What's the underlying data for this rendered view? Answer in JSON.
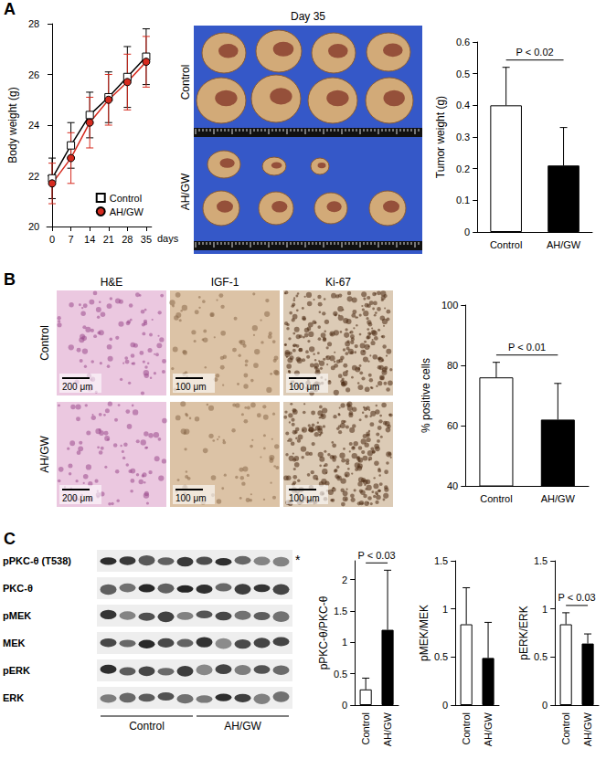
{
  "panel_labels": [
    "A",
    "B",
    "C"
  ],
  "tumor_photo": {
    "title": "Day 35",
    "rows": [
      "Control",
      "AH/GW"
    ]
  },
  "histology": {
    "columns": [
      "H&E",
      "IGF-1",
      "Ki-67"
    ],
    "rows": [
      "Control",
      "AH/GW"
    ],
    "scale_bars": [
      [
        "200 μm",
        "100 μm",
        "100 μm"
      ],
      [
        "200 μm",
        "100 μm",
        "100 μm"
      ]
    ]
  },
  "western_blot": {
    "rows": [
      "pPKC-θ (T538)",
      "PKC-θ",
      "pMEK",
      "MEK",
      "pERK",
      "ERK"
    ],
    "asterisk": "*",
    "groups": [
      "Control",
      "AH/GW"
    ]
  },
  "chart_data": [
    {
      "type": "line",
      "y_label": "Body weight (g)",
      "x_label": "days",
      "x": [
        0,
        7,
        14,
        21,
        28,
        35
      ],
      "xlim": [
        -2,
        37
      ],
      "xticks": [
        0,
        7,
        14,
        21,
        28,
        35
      ],
      "ylim": [
        20,
        28
      ],
      "yticks": [
        20,
        22,
        24,
        26,
        28
      ],
      "grid": false,
      "legend": "lower right",
      "series": [
        {
          "name": "Control",
          "color": "#000000",
          "marker": "square",
          "values": [
            21.9,
            23.2,
            24.4,
            25.1,
            25.9,
            26.7
          ],
          "errors": [
            0.8,
            0.9,
            0.9,
            1.0,
            1.2,
            1.1
          ]
        },
        {
          "name": "AH/GW",
          "color": "#d62b1f",
          "marker": "circle",
          "values": [
            21.7,
            22.7,
            24.1,
            25.0,
            25.7,
            26.5
          ],
          "errors": [
            0.8,
            1.0,
            1.0,
            1.0,
            1.1,
            1.0
          ]
        }
      ]
    },
    {
      "type": "bar",
      "y_label": "Tumor weight (g)",
      "categories": [
        "Control",
        "AH/GW"
      ],
      "values": [
        0.4,
        0.21
      ],
      "errors": [
        0.12,
        0.12
      ],
      "colors": [
        "#ffffff",
        "#000000"
      ],
      "ylim": [
        0,
        0.6
      ],
      "yticks": [
        0,
        0.1,
        0.2,
        0.3,
        0.4,
        0.5,
        0.6
      ],
      "grid": false,
      "annotation": "P < 0.02"
    },
    {
      "type": "bar",
      "y_label": "% positive cells",
      "categories": [
        "Control",
        "AH/GW"
      ],
      "values": [
        76,
        62
      ],
      "errors": [
        5,
        12
      ],
      "colors": [
        "#ffffff",
        "#000000"
      ],
      "ylim": [
        40,
        100
      ],
      "yticks": [
        40,
        60,
        80,
        100
      ],
      "grid": false,
      "annotation": "P < 0.01"
    },
    {
      "type": "bar",
      "y_label": "pPKC-θ/PKC-θ",
      "categories": [
        "Control",
        "AH/GW"
      ],
      "values": [
        0.25,
        1.2
      ],
      "errors": [
        0.18,
        0.95
      ],
      "colors": [
        "#ffffff",
        "#000000"
      ],
      "ylim": [
        0,
        2.3
      ],
      "yticks": [
        0,
        0.5,
        1,
        1.5,
        2
      ],
      "grid": false,
      "annotation": "P < 0.03"
    },
    {
      "type": "bar",
      "y_label": "pMEK/MEK",
      "categories": [
        "Control",
        "AH/GW"
      ],
      "values": [
        0.84,
        0.49
      ],
      "errors": [
        0.38,
        0.37
      ],
      "colors": [
        "#ffffff",
        "#000000"
      ],
      "ylim": [
        0,
        1.5
      ],
      "yticks": [
        0,
        0.5,
        1,
        1.5
      ],
      "grid": false
    },
    {
      "type": "bar",
      "y_label": "pERK/ERK",
      "categories": [
        "Control",
        "AH/GW"
      ],
      "values": [
        0.84,
        0.64
      ],
      "errors": [
        0.12,
        0.1
      ],
      "colors": [
        "#ffffff",
        "#000000"
      ],
      "ylim": [
        0,
        1.5
      ],
      "yticks": [
        0,
        0.5,
        1,
        1.5
      ],
      "grid": false,
      "annotation": "P < 0.03"
    }
  ]
}
